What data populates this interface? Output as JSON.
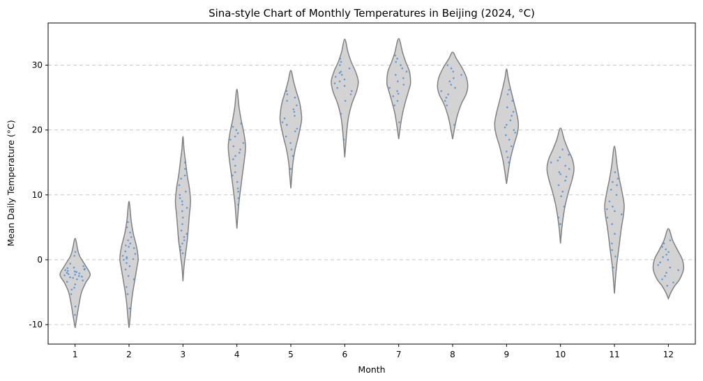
{
  "chart_data": {
    "type": "violin",
    "title": "Sina-style Chart of Monthly Temperatures in Beijing (2024, °C)",
    "xlabel": "Month",
    "ylabel": "Mean Daily Temperature (°C)",
    "ylim": [
      -13,
      36.5
    ],
    "yticks": [
      -10,
      0,
      10,
      20,
      30
    ],
    "grid": "y-dashed",
    "colors": {
      "violin_fill": "#d3d3d3",
      "violin_edge": "#808080",
      "points": "#4a90d9",
      "grid": "#c8c8c8"
    },
    "categories": [
      "1",
      "2",
      "3",
      "4",
      "5",
      "6",
      "7",
      "8",
      "9",
      "10",
      "11",
      "12"
    ],
    "violins": [
      {
        "month": "1",
        "min": -10.5,
        "max": 3.3,
        "bulge": -2.3,
        "half_width": 0.28,
        "shape": [
          [
            -10.5,
            0.0
          ],
          [
            -9,
            0.03
          ],
          [
            -7,
            0.07
          ],
          [
            -5,
            0.12
          ],
          [
            -3.5,
            0.2
          ],
          [
            -2.3,
            0.28
          ],
          [
            -1,
            0.2
          ],
          [
            0.5,
            0.09
          ],
          [
            1.5,
            0.05
          ],
          [
            3.3,
            0.0
          ]
        ]
      },
      {
        "month": "2",
        "min": -10.5,
        "max": 9.0,
        "bulge": 0.2,
        "half_width": 0.17,
        "shape": [
          [
            -10.5,
            0.0
          ],
          [
            -9,
            0.02
          ],
          [
            -7,
            0.04
          ],
          [
            -5,
            0.07
          ],
          [
            -3,
            0.11
          ],
          [
            -1,
            0.15
          ],
          [
            0.2,
            0.17
          ],
          [
            2,
            0.14
          ],
          [
            4,
            0.08
          ],
          [
            6,
            0.04
          ],
          [
            9,
            0.0
          ]
        ]
      },
      {
        "month": "3",
        "min": -3.3,
        "max": 19.0,
        "bulge": 9.0,
        "half_width": 0.14,
        "shape": [
          [
            -3.3,
            0.0
          ],
          [
            -1,
            0.02
          ],
          [
            1,
            0.05
          ],
          [
            3,
            0.08
          ],
          [
            5,
            0.1
          ],
          [
            7,
            0.12
          ],
          [
            9,
            0.14
          ],
          [
            11,
            0.12
          ],
          [
            13,
            0.08
          ],
          [
            15,
            0.05
          ],
          [
            17,
            0.02
          ],
          [
            19,
            0.0
          ]
        ]
      },
      {
        "month": "4",
        "min": 4.8,
        "max": 26.3,
        "bulge": 17.5,
        "half_width": 0.16,
        "shape": [
          [
            4.8,
            0.0
          ],
          [
            7,
            0.02
          ],
          [
            9,
            0.04
          ],
          [
            11,
            0.07
          ],
          [
            13,
            0.1
          ],
          [
            15.5,
            0.14
          ],
          [
            17.5,
            0.16
          ],
          [
            19.5,
            0.13
          ],
          [
            21.5,
            0.08
          ],
          [
            23.5,
            0.04
          ],
          [
            26.3,
            0.0
          ]
        ]
      },
      {
        "month": "5",
        "min": 11.0,
        "max": 29.2,
        "bulge": 22.0,
        "half_width": 0.2,
        "shape": [
          [
            11,
            0.0
          ],
          [
            13,
            0.02
          ],
          [
            15,
            0.04
          ],
          [
            17,
            0.08
          ],
          [
            19,
            0.14
          ],
          [
            21,
            0.19
          ],
          [
            22,
            0.2
          ],
          [
            24,
            0.17
          ],
          [
            26,
            0.1
          ],
          [
            27.5,
            0.05
          ],
          [
            29.2,
            0.0
          ]
        ]
      },
      {
        "month": "6",
        "min": 15.8,
        "max": 34.0,
        "bulge": 27.5,
        "half_width": 0.25,
        "shape": [
          [
            15.8,
            0.0
          ],
          [
            18,
            0.02
          ],
          [
            20,
            0.04
          ],
          [
            22,
            0.07
          ],
          [
            24,
            0.13
          ],
          [
            26,
            0.22
          ],
          [
            27.5,
            0.25
          ],
          [
            29,
            0.2
          ],
          [
            30.5,
            0.12
          ],
          [
            32,
            0.06
          ],
          [
            34,
            0.0
          ]
        ]
      },
      {
        "month": "7",
        "min": 18.6,
        "max": 34.1,
        "bulge": 27.3,
        "half_width": 0.22,
        "shape": [
          [
            18.6,
            0.0
          ],
          [
            20.5,
            0.03
          ],
          [
            22.5,
            0.07
          ],
          [
            24.5,
            0.13
          ],
          [
            26.5,
            0.2
          ],
          [
            27.3,
            0.22
          ],
          [
            29,
            0.2
          ],
          [
            30.5,
            0.13
          ],
          [
            32,
            0.07
          ],
          [
            34.1,
            0.0
          ]
        ]
      },
      {
        "month": "8",
        "min": 18.6,
        "max": 32.0,
        "bulge": 26.7,
        "half_width": 0.28,
        "shape": [
          [
            18.6,
            0.0
          ],
          [
            20,
            0.03
          ],
          [
            22,
            0.08
          ],
          [
            24,
            0.16
          ],
          [
            25.5,
            0.25
          ],
          [
            26.7,
            0.28
          ],
          [
            28,
            0.26
          ],
          [
            29.5,
            0.18
          ],
          [
            31,
            0.07
          ],
          [
            32,
            0.0
          ]
        ]
      },
      {
        "month": "9",
        "min": 11.7,
        "max": 29.4,
        "bulge": 21.0,
        "half_width": 0.22,
        "shape": [
          [
            11.7,
            0.0
          ],
          [
            13.5,
            0.03
          ],
          [
            15.5,
            0.07
          ],
          [
            17.5,
            0.13
          ],
          [
            19.5,
            0.2
          ],
          [
            21,
            0.22
          ],
          [
            22.5,
            0.19
          ],
          [
            24.5,
            0.13
          ],
          [
            26.5,
            0.07
          ],
          [
            28,
            0.03
          ],
          [
            29.4,
            0.0
          ]
        ]
      },
      {
        "month": "10",
        "min": 2.5,
        "max": 20.3,
        "bulge": 14.0,
        "half_width": 0.25,
        "shape": [
          [
            2.5,
            0.0
          ],
          [
            4.5,
            0.02
          ],
          [
            6.5,
            0.05
          ],
          [
            8.5,
            0.09
          ],
          [
            10.5,
            0.15
          ],
          [
            12.5,
            0.22
          ],
          [
            14,
            0.25
          ],
          [
            15.5,
            0.22
          ],
          [
            17,
            0.14
          ],
          [
            18.5,
            0.07
          ],
          [
            20.3,
            0.0
          ]
        ]
      },
      {
        "month": "11",
        "min": -5.2,
        "max": 17.5,
        "bulge": 8.5,
        "half_width": 0.18,
        "shape": [
          [
            -5.2,
            0.0
          ],
          [
            -3,
            0.02
          ],
          [
            -1,
            0.04
          ],
          [
            1,
            0.07
          ],
          [
            3,
            0.1
          ],
          [
            5,
            0.13
          ],
          [
            7,
            0.17
          ],
          [
            8.5,
            0.18
          ],
          [
            10.5,
            0.14
          ],
          [
            12.5,
            0.09
          ],
          [
            14.5,
            0.05
          ],
          [
            17.5,
            0.0
          ]
        ]
      },
      {
        "month": "12",
        "min": -6.0,
        "max": 4.8,
        "bulge": -1.5,
        "half_width": 0.28,
        "shape": [
          [
            -6,
            0.0
          ],
          [
            -5,
            0.05
          ],
          [
            -4,
            0.12
          ],
          [
            -3,
            0.21
          ],
          [
            -1.5,
            0.28
          ],
          [
            0,
            0.26
          ],
          [
            1.5,
            0.17
          ],
          [
            3,
            0.08
          ],
          [
            4.8,
            0.0
          ]
        ]
      }
    ],
    "points": [
      {
        "month": "1",
        "values": [
          -8.5,
          -7.2,
          -5.3,
          -4.6,
          -4.3,
          -3.8,
          -3.4,
          -3.2,
          -3.0,
          -2.8,
          -2.7,
          -2.6,
          -2.5,
          -2.4,
          -2.3,
          -2.2,
          -2.1,
          -2.0,
          -1.9,
          -1.8,
          -1.7,
          -1.6,
          -1.5,
          -1.4,
          -1.3,
          -1.2,
          -1.0,
          -0.6,
          0.6,
          1.2
        ]
      },
      {
        "month": "2",
        "values": [
          -7.5,
          -5.3,
          -4.2,
          -3.0,
          -2.5,
          -1.5,
          -1.0,
          -0.5,
          0.0,
          0.1,
          0.2,
          0.4,
          0.6,
          0.9,
          1.3,
          1.8,
          2.0,
          2.2,
          2.5,
          3.0,
          3.5,
          4.2,
          5.0,
          5.8
        ]
      },
      {
        "month": "3",
        "values": [
          1.0,
          1.5,
          2.0,
          2.5,
          3.0,
          3.5,
          4.0,
          4.5,
          5.5,
          6.5,
          7.5,
          8.0,
          8.5,
          9.0,
          9.5,
          10.0,
          10.5,
          11.5,
          12.5,
          13.0,
          14.0,
          15.0
        ]
      },
      {
        "month": "4",
        "values": [
          8.5,
          9.5,
          10.5,
          11.0,
          12.0,
          13.0,
          13.5,
          14.5,
          15.5,
          16.0,
          16.5,
          17.0,
          17.5,
          18.0,
          18.5,
          19.0,
          19.5,
          20.0,
          20.5,
          21.0
        ]
      },
      {
        "month": "5",
        "values": [
          14.0,
          16.0,
          17.0,
          18.0,
          19.0,
          19.8,
          20.2,
          20.8,
          21.2,
          21.8,
          22.2,
          22.8,
          23.2,
          23.8,
          24.5,
          25.0,
          25.5,
          26.0
        ]
      },
      {
        "month": "6",
        "values": [
          18.5,
          22.5,
          24.5,
          25.5,
          26.0,
          26.5,
          26.8,
          27.2,
          27.5,
          27.8,
          28.2,
          28.5,
          28.8,
          29.0,
          29.5,
          30.0,
          30.5,
          31.0
        ]
      },
      {
        "month": "7",
        "values": [
          21.2,
          23.8,
          24.5,
          25.2,
          25.6,
          26.0,
          26.5,
          27.0,
          27.5,
          28.0,
          28.5,
          29.0,
          29.5,
          30.0,
          30.5,
          31.0,
          31.5
        ]
      },
      {
        "month": "8",
        "values": [
          20.8,
          23.8,
          24.5,
          25.0,
          25.5,
          26.0,
          26.5,
          27.0,
          27.5,
          28.0,
          28.5,
          29.0,
          29.5,
          30.0
        ]
      },
      {
        "month": "9",
        "values": [
          15.0,
          15.8,
          16.7,
          17.5,
          18.5,
          19.2,
          19.6,
          20.0,
          20.4,
          20.8,
          21.5,
          22.2,
          22.8,
          23.5,
          24.5,
          25.5,
          26.2
        ]
      },
      {
        "month": "10",
        "values": [
          5.5,
          6.5,
          8.2,
          9.8,
          10.5,
          11.5,
          12.2,
          12.8,
          13.2,
          13.5,
          14.0,
          14.5,
          15.0,
          15.3,
          15.8,
          16.2,
          17.0
        ]
      },
      {
        "month": "11",
        "values": [
          -1.2,
          0.5,
          1.5,
          2.5,
          4.0,
          5.5,
          6.5,
          7.0,
          7.5,
          7.8,
          8.2,
          9.0,
          10.0,
          10.8,
          11.5,
          12.0,
          12.5,
          13.5
        ]
      },
      {
        "month": "12",
        "values": [
          -4.0,
          -3.5,
          -3.0,
          -2.5,
          -2.0,
          -1.6,
          -1.2,
          -0.8,
          -0.4,
          0.0,
          0.4,
          0.8,
          1.2,
          1.6,
          2.0,
          2.5,
          3.0
        ]
      }
    ]
  }
}
